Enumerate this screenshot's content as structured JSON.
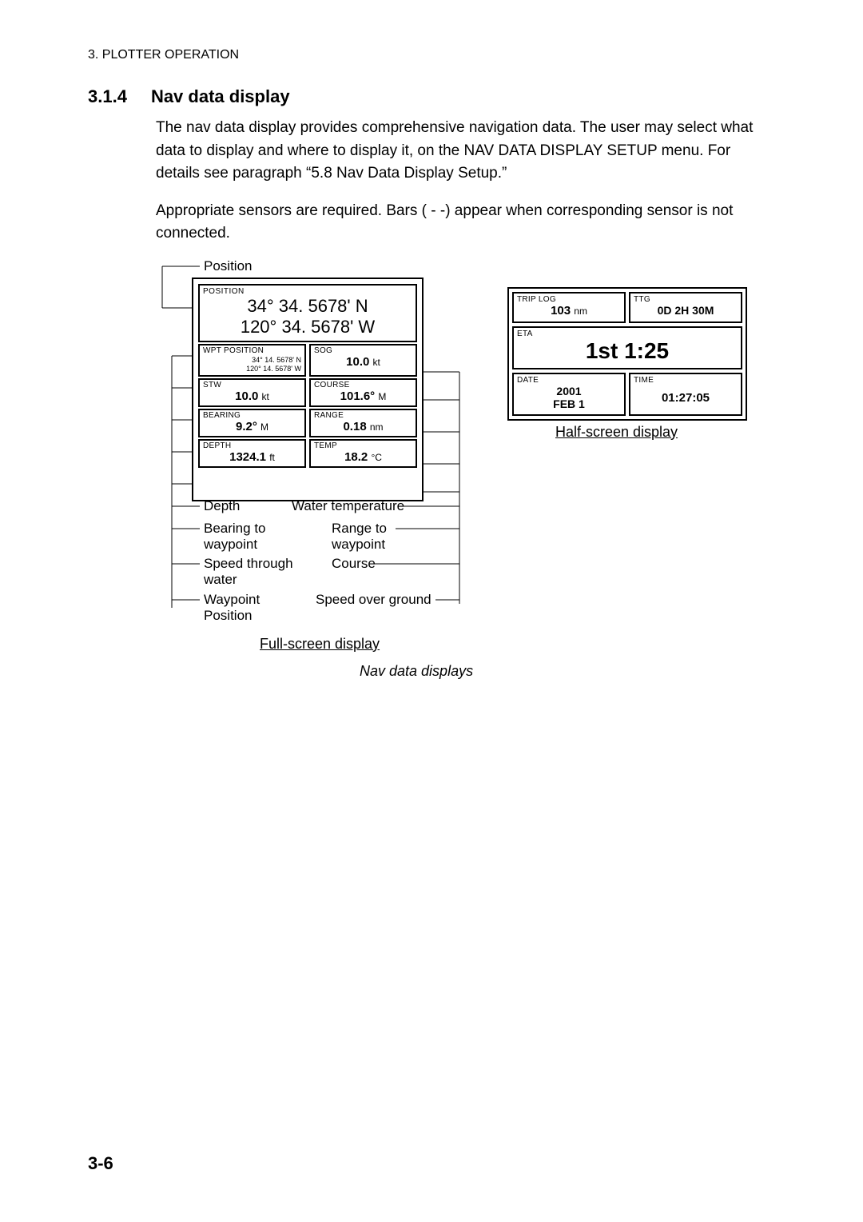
{
  "header": "3. PLOTTER OPERATION",
  "section": {
    "num": "3.1.4",
    "title": "Nav data display"
  },
  "para1": "The nav data display provides comprehensive navigation data. The user may select what data to display and where to display it, on the NAV DATA DISPLAY SETUP menu. For details see paragraph “5.8 Nav Data Display Setup.”",
  "para2": "Appropriate sensors are required. Bars ( - -) appear when corresponding sensor is not connected.",
  "full": {
    "position": {
      "label": "POSITION",
      "line1": "34° 34. 5678' N",
      "line2": "120° 34. 5678' W"
    },
    "wpt": {
      "label": "WPT POSITION",
      "l1": "34° 14. 5678' N",
      "l2": "120° 14. 5678' W"
    },
    "sog": {
      "label": "SOG",
      "val": "10.0",
      "unit": "kt"
    },
    "stw": {
      "label": "STW",
      "val": "10.0",
      "unit": "kt"
    },
    "course": {
      "label": "COURSE",
      "val": "101.6°",
      "unit": "M"
    },
    "bearing": {
      "label": "BEARING",
      "val": "9.2°",
      "unit": "M"
    },
    "range": {
      "label": "RANGE",
      "val": "0.18",
      "unit": "nm"
    },
    "depth": {
      "label": "DEPTH",
      "val": "1324.1",
      "unit": "ft"
    },
    "temp": {
      "label": "TEMP",
      "val": "18.2",
      "unit": "°C"
    }
  },
  "half": {
    "trip": {
      "label": "TRIP LOG",
      "val": "103",
      "unit": "nm"
    },
    "ttg": {
      "label": "TTG",
      "html": "<b>0</b>D <b>2</b>H <b>30</b>M"
    },
    "eta": {
      "label": "ETA",
      "val": "1st 1:25"
    },
    "date": {
      "label": "DATE",
      "l1": "2001",
      "l2": "FEB 1"
    },
    "time": {
      "label": "TIME",
      "val": "01:27:05"
    }
  },
  "ann": {
    "position": "Position",
    "depth": "Depth",
    "wtemp": "Water temperature",
    "bearing": "Bearing to\nwaypoint",
    "range": "Range to\nwaypoint",
    "stw": "Speed through\nwater",
    "course": "Course",
    "wpt": "Waypoint\nPosition",
    "sog": "Speed over ground"
  },
  "captions": {
    "full": "Full-screen display",
    "half": "Half-screen display",
    "fig": "Nav data displays"
  },
  "pagenum": "3-6"
}
